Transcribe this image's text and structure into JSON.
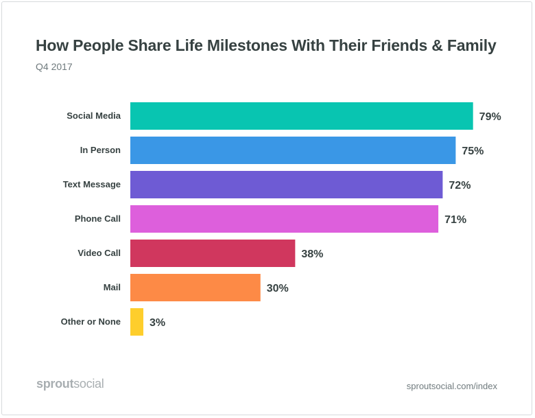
{
  "header": {
    "title": "How People Share Life Milestones With Their Friends & Family",
    "subtitle": "Q4 2017"
  },
  "footer": {
    "logo_bold": "sprout",
    "logo_regular": "social",
    "source": "sproutsocial.com/index"
  },
  "chart_data": {
    "type": "bar",
    "orientation": "horizontal",
    "title": "How People Share Life Milestones With Their Friends & Family",
    "subtitle": "Q4 2017",
    "xlabel": "",
    "ylabel": "",
    "xlim": [
      0,
      100
    ],
    "grid": false,
    "categories": [
      "Social Media",
      "In Person",
      "Text Message",
      "Phone Call",
      "Video Call",
      "Mail",
      "Other or None"
    ],
    "values": [
      79,
      75,
      72,
      71,
      38,
      30,
      3
    ],
    "value_labels": [
      "79%",
      "75%",
      "72%",
      "71%",
      "38%",
      "30%",
      "3%"
    ],
    "colors": [
      "#08c5b1",
      "#3a97e6",
      "#6e5bd4",
      "#dd5fdc",
      "#d0375e",
      "#fd8a46",
      "#fece2c"
    ]
  }
}
